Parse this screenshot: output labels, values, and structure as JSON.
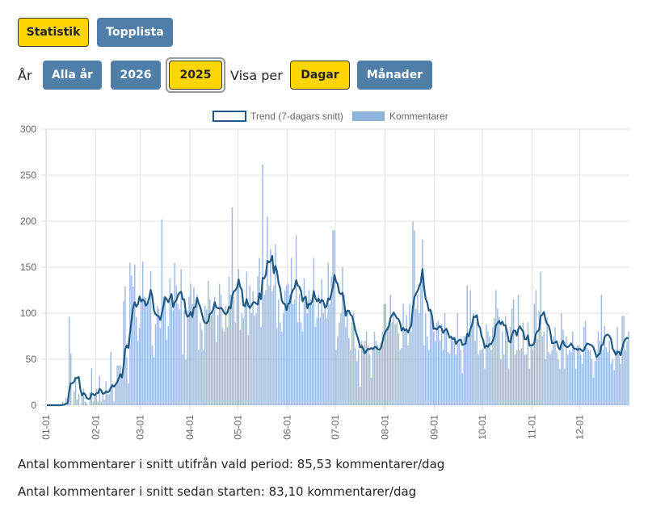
{
  "nav": {
    "statistik": "Statistik",
    "topplista": "Topplista"
  },
  "filters": {
    "year_label": "År",
    "years": [
      "Alla år",
      "2026",
      "2025"
    ],
    "selected_year": "2025",
    "view_label": "Visa per",
    "views": [
      "Dagar",
      "Månader"
    ],
    "selected_view": "Dagar"
  },
  "colors": {
    "accent_yellow": "#ffd500",
    "button_blue": "#4f7ea8",
    "trend_line": "#1f5a85",
    "bars": "#8fb2dc"
  },
  "chart_data": {
    "type": "bar",
    "title": "",
    "xlabel": "",
    "ylabel": "",
    "ylim": [
      0,
      300
    ],
    "yticks": [
      "0",
      "50",
      "100",
      "150",
      "200",
      "250",
      "300"
    ],
    "xticks": [
      "01-01",
      "02-01",
      "03-01",
      "04-01",
      "05-01",
      "06-01",
      "07-01",
      "08-01",
      "09-01",
      "10-01",
      "11-01",
      "12-01"
    ],
    "legend": {
      "position": "top-center",
      "entries": [
        "Trend (7-dagars snitt)",
        "Kommentarer"
      ]
    },
    "grid": true,
    "series": [
      {
        "name": "Kommentarer",
        "type": "bar",
        "note": "daily values, approximated from image",
        "values": [
          0,
          0,
          0,
          0,
          0,
          0,
          0,
          0,
          0,
          0,
          4,
          0,
          8,
          3,
          96,
          56,
          0,
          15,
          30,
          6,
          12,
          0,
          12,
          18,
          4,
          2,
          0,
          14,
          40,
          4,
          12,
          18,
          4,
          32,
          4,
          14,
          6,
          26,
          12,
          12,
          58,
          24,
          4,
          22,
          43,
          43,
          43,
          32,
          113,
          129,
          52,
          24,
          155,
          141,
          129,
          153,
          96,
          70,
          84,
          116,
          156,
          118,
          117,
          112,
          112,
          146,
          65,
          52,
          88,
          108,
          105,
          84,
          202,
          118,
          117,
          71,
          86,
          138,
          114,
          103,
          155,
          130,
          110,
          104,
          148,
          55,
          103,
          50,
          103,
          118,
          132,
          110,
          128,
          106,
          120,
          60,
          90,
          82,
          60,
          108,
          104,
          135,
          115,
          98,
          106,
          118,
          69,
          98,
          132,
          120,
          84,
          80,
          108,
          85,
          140,
          120,
          215,
          118,
          90,
          126,
          148,
          82,
          100,
          95,
          112,
          145,
          76,
          130,
          100,
          124,
          97,
          100,
          140,
          160,
          85,
          262,
          120,
          125,
          205,
          130,
          170,
          124,
          130,
          175,
          84,
          115,
          90,
          80,
          100,
          125,
          130,
          132,
          120,
          160,
          110,
          115,
          185,
          90,
          120,
          90,
          80,
          138,
          120,
          100,
          125,
          115,
          110,
          160,
          85,
          95,
          120,
          95,
          137,
          100,
          110,
          95,
          155,
          110,
          140,
          190,
          190,
          60,
          75,
          90,
          100,
          150,
          120,
          85,
          100,
          73,
          60,
          90,
          100,
          62,
          48,
          60,
          20,
          70,
          65,
          70,
          80,
          65,
          55,
          30,
          62,
          80,
          70,
          65,
          60,
          68,
          80,
          110,
          110,
          85,
          90,
          120,
          90,
          100,
          88,
          90,
          78,
          60,
          62,
          110,
          80,
          98,
          65,
          110,
          80,
          200,
          190,
          105,
          120,
          100,
          140,
          180,
          65,
          100,
          75,
          60,
          105,
          95,
          80,
          70,
          90,
          92,
          70,
          88,
          60,
          100,
          82,
          58,
          56,
          76,
          70,
          70,
          55,
          100,
          68,
          60,
          35,
          75,
          75,
          130,
          80,
          125,
          90,
          100,
          70,
          90,
          55,
          60,
          60,
          62,
          40,
          88,
          80,
          75,
          60,
          85,
          95,
          125,
          105,
          96,
          50,
          80,
          55,
          97,
          70,
          40,
          85,
          105,
          115,
          55,
          60,
          120,
          60,
          62,
          90,
          55,
          55,
          90,
          40,
          65,
          60,
          110,
          125,
          72,
          102,
          145,
          75,
          80,
          50,
          95,
          58,
          55,
          60,
          75,
          85,
          58,
          50,
          40,
          100,
          82,
          40,
          75,
          55,
          60,
          58,
          80,
          62,
          40,
          65,
          65,
          55,
          45,
          85,
          92,
          63,
          60,
          60,
          50,
          30,
          48,
          55,
          80,
          70,
          120,
          60,
          86,
          63,
          58,
          70,
          45,
          50,
          38,
          60,
          85,
          58,
          45,
          97,
          97,
          60,
          70,
          80,
          45,
          60,
          98,
          50,
          55,
          20,
          60,
          85,
          42,
          78,
          55,
          45,
          60,
          75,
          60,
          55,
          50,
          40,
          45,
          55,
          60,
          75,
          50,
          48
        ]
      }
    ]
  },
  "stats": {
    "period_avg": "Antal kommentarer i snitt utifrån vald period: 85,53 kommentarer/dag",
    "since_start_avg": "Antal kommentarer i snitt sedan starten: 83,10 kommentarer/dag"
  }
}
